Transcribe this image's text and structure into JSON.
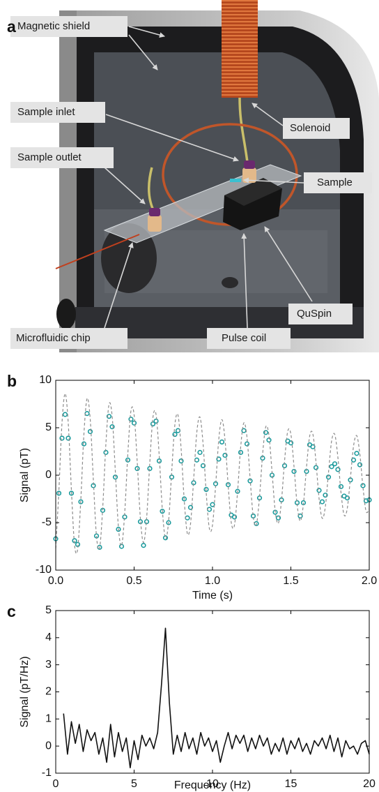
{
  "panel_a": {
    "letter": "a",
    "labels": [
      "Magnetic shield",
      "Sample inlet",
      "Sample outlet",
      "Solenoid",
      "Sample",
      "QuSpin",
      "Microfluidic chip",
      "Pulse coil"
    ]
  },
  "chart_data": [
    {
      "type": "line",
      "panel_label": "b",
      "xlabel": "Time (s)",
      "ylabel": "Signal (pT)",
      "xlim": [
        0,
        2
      ],
      "ylim": [
        -10,
        10
      ],
      "xticks": [
        {
          "value": 0,
          "label": "0.0"
        },
        0.5,
        {
          "value": 1,
          "label": "1.0"
        },
        1.5,
        {
          "value": 2,
          "label": "2.0"
        }
      ],
      "yticks": [
        -10,
        -5,
        0,
        5,
        10
      ],
      "x": [
        0,
        0.02,
        0.04,
        0.06,
        0.08,
        0.1,
        0.12,
        0.14,
        0.16,
        0.18,
        0.2,
        0.22,
        0.24,
        0.26,
        0.28,
        0.3,
        0.32,
        0.34,
        0.36,
        0.38,
        0.4,
        0.42,
        0.44,
        0.46,
        0.48,
        0.5,
        0.52,
        0.54,
        0.56,
        0.58,
        0.6,
        0.62,
        0.64,
        0.66,
        0.68,
        0.7,
        0.72,
        0.74,
        0.76,
        0.78,
        0.8,
        0.82,
        0.84,
        0.86,
        0.88,
        0.9,
        0.92,
        0.94,
        0.96,
        0.98,
        1.0,
        1.02,
        1.04,
        1.06,
        1.08,
        1.1,
        1.12,
        1.14,
        1.16,
        1.18,
        1.2,
        1.22,
        1.24,
        1.26,
        1.28,
        1.3,
        1.32,
        1.34,
        1.36,
        1.38,
        1.4,
        1.42,
        1.44,
        1.46,
        1.48,
        1.5,
        1.52,
        1.54,
        1.56,
        1.58,
        1.6,
        1.62,
        1.64,
        1.66,
        1.68,
        1.7,
        1.72,
        1.74,
        1.76,
        1.78,
        1.8,
        1.82,
        1.84,
        1.86,
        1.88,
        1.9,
        1.92,
        1.94,
        1.96,
        1.98,
        2.0
      ],
      "series": [
        {
          "color": "#1a9a9c",
          "marker": "circle",
          "values": [
            -6.7,
            -1.9,
            3.9,
            6.4,
            3.9,
            -1.9,
            -6.9,
            -7.3,
            -2.8,
            3.3,
            6.5,
            4.6,
            -1.1,
            -6.4,
            -7.6,
            -3.7,
            2.4,
            6.2,
            5.1,
            -0.2,
            -5.7,
            -7.5,
            -4.4,
            1.6,
            5.9,
            5.5,
            0.7,
            -4.9,
            -7.4,
            -4.9,
            0.7,
            5.4,
            5.7,
            1.5,
            -3.8,
            -6.6,
            -5.0,
            -0.2,
            4.3,
            4.7,
            1.5,
            -2.5,
            -4.5,
            -3.4,
            -0.8,
            1.6,
            2.4,
            1.0,
            -1.5,
            -3.6,
            -3.1,
            -0.9,
            1.7,
            3.5,
            2.1,
            -1.0,
            -4.2,
            -4.4,
            -1.7,
            2.4,
            4.7,
            3.3,
            -0.6,
            -4.3,
            -5.1,
            -2.4,
            1.8,
            4.5,
            3.7,
            0.0,
            -3.9,
            -4.5,
            -2.6,
            1.0,
            3.6,
            3.4,
            0.4,
            -2.9,
            -4.3,
            -2.9,
            0.4,
            3.2,
            3.0,
            0.8,
            -1.6,
            -2.8,
            -2.1,
            -0.2,
            0.9,
            1.2,
            0.6,
            -1.2,
            -2.2,
            -2.4,
            -0.5,
            1.6,
            2.3,
            1.1,
            -1.1,
            -2.7,
            -2.6
          ]
        },
        {
          "color": "#8c8c8c",
          "dash": true,
          "values": [
            -7.71,
            -1.63,
            5.52,
            8.6,
            5.43,
            -1.58,
            -7.36,
            -7.76,
            -2.56,
            4.4,
            8.08,
            5.9,
            -0.51,
            -6.44,
            -7.66,
            -3.34,
            3.31,
            7.48,
            6.2,
            0.48,
            -5.5,
            -7.43,
            -3.98,
            2.28,
            6.81,
            6.36,
            1.35,
            -4.55,
            -7.1,
            -4.48,
            1.31,
            6.08,
            6.4,
            2.11,
            -3.63,
            -6.67,
            -4.86,
            0.42,
            5.32,
            6.32,
            2.76,
            -2.73,
            -6.17,
            -5.11,
            -0.4,
            4.53,
            6.12,
            3.29,
            -1.88,
            -5.61,
            -5.25,
            -1.11,
            3.76,
            5.86,
            3.7,
            -1.08,
            -5.01,
            -5.28,
            -1.74,
            3.0,
            5.51,
            4.02,
            -0.34,
            -4.39,
            -5.21,
            -2.27,
            2.26,
            5.1,
            4.22,
            0.33,
            -3.75,
            -5.06,
            -2.71,
            1.55,
            4.63,
            4.33,
            0.92,
            -3.1,
            -4.83,
            -3.05,
            0.89,
            4.13,
            4.36,
            1.44,
            -2.48,
            -4.54,
            -3.31,
            0.28,
            3.62,
            4.3,
            1.87,
            -1.86,
            -4.21,
            -3.48,
            -0.27,
            3.09,
            4.17,
            2.24,
            -1.28,
            -3.82,
            -3.57
          ]
        }
      ]
    },
    {
      "type": "line",
      "panel_label": "c",
      "xlabel": "Frequency (Hz)",
      "ylabel": "Signal (pT/Hz)",
      "xlim": [
        0,
        20
      ],
      "ylim": [
        -1,
        5
      ],
      "xticks": [
        0,
        5,
        10,
        15,
        20
      ],
      "yticks": [
        -1,
        0,
        1,
        2,
        3,
        4,
        5
      ],
      "x": [
        0.5,
        0.75,
        1,
        1.25,
        1.5,
        1.75,
        2,
        2.25,
        2.5,
        2.75,
        3,
        3.25,
        3.5,
        3.75,
        4,
        4.25,
        4.5,
        4.75,
        5,
        5.25,
        5.5,
        5.75,
        6,
        6.25,
        6.5,
        6.75,
        7,
        7.25,
        7.5,
        7.75,
        8,
        8.25,
        8.5,
        8.75,
        9,
        9.25,
        9.5,
        9.75,
        10,
        10.25,
        10.5,
        10.75,
        11,
        11.25,
        11.5,
        11.75,
        12,
        12.25,
        12.5,
        12.75,
        13,
        13.25,
        13.5,
        13.75,
        14,
        14.25,
        14.5,
        14.75,
        15,
        15.25,
        15.5,
        15.75,
        16,
        16.25,
        16.5,
        16.75,
        17,
        17.25,
        17.5,
        17.75,
        18,
        18.25,
        18.5,
        18.75,
        19,
        19.25,
        19.5,
        19.75,
        20
      ],
      "series": [
        {
          "color": "#111111",
          "values": [
            1.2,
            -0.3,
            0.9,
            0.1,
            0.8,
            -0.2,
            0.6,
            0.2,
            0.5,
            -0.3,
            0.3,
            -0.6,
            0.8,
            -0.4,
            0.5,
            -0.2,
            0.3,
            -0.8,
            0.2,
            -0.5,
            0.4,
            0.0,
            0.3,
            -0.1,
            0.5,
            2.3,
            4.35,
            1.6,
            -0.3,
            0.4,
            -0.2,
            0.5,
            -0.1,
            0.3,
            -0.3,
            0.5,
            0.0,
            0.3,
            -0.2,
            0.2,
            -0.6,
            0.0,
            0.5,
            -0.1,
            0.4,
            0.1,
            0.4,
            -0.2,
            0.3,
            -0.1,
            0.4,
            0.0,
            0.3,
            -0.3,
            0.1,
            -0.2,
            0.3,
            -0.3,
            0.2,
            -0.1,
            0.3,
            -0.2,
            0.1,
            -0.3,
            0.2,
            0.0,
            0.3,
            -0.1,
            0.4,
            -0.2,
            0.3,
            -0.4,
            0.2,
            -0.1,
            0.0,
            -0.3,
            0.1,
            0.2,
            -0.3
          ]
        }
      ]
    }
  ]
}
